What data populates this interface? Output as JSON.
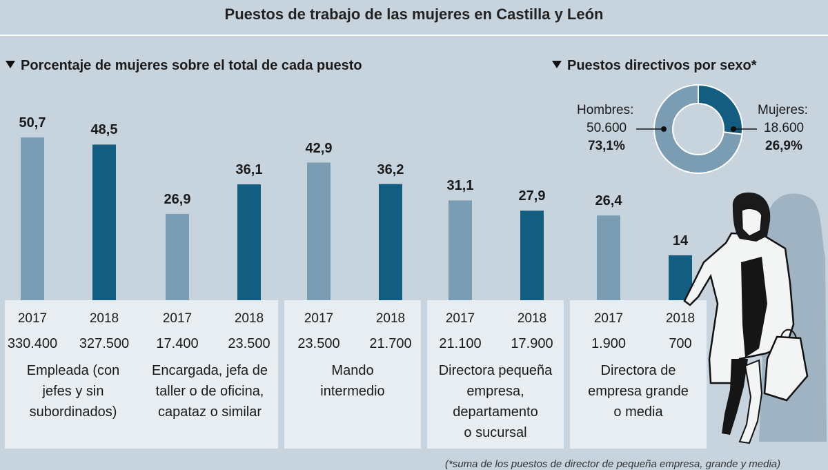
{
  "title": "Puestos de trabajo de las mujeres en Castilla y León",
  "footnote": "(*suma de los puestos de director de pequeña empresa, grande y media)",
  "colors": {
    "y2017": "#7b9db3",
    "y2018": "#135d80",
    "background": "#c7d4de",
    "panel": "#e8edf2"
  },
  "chart_data": [
    {
      "type": "bar",
      "title": "Porcentaje de mujeres sobre el total de cada puesto",
      "ylim": [
        0,
        60
      ],
      "years": [
        "2017",
        "2018"
      ],
      "value_labels": [
        [
          "50,7",
          "48,5"
        ],
        [
          "26,9",
          "36,1"
        ],
        [
          "42,9",
          "36,2"
        ],
        [
          "31,1",
          "27,9"
        ],
        [
          "26,4",
          "14"
        ]
      ],
      "counts": [
        [
          "330.400",
          "327.500"
        ],
        [
          "17.400",
          "23.500"
        ],
        [
          "23.500",
          "21.700"
        ],
        [
          "21.100",
          "17.900"
        ],
        [
          "1.900",
          "700"
        ]
      ],
      "categories": [
        [
          "Empleada (con",
          "jefes y sin",
          "subordinados)"
        ],
        [
          "Encargada, jefa de",
          "taller o de oficina,",
          "capataz o similar"
        ],
        [
          "Mando",
          "intermedio"
        ],
        [
          "Directora pequeña",
          "empresa,",
          "departamento",
          "o sucursal"
        ],
        [
          "Directora de",
          "empresa grande",
          "o media"
        ]
      ],
      "series": [
        {
          "name": "2017",
          "values": [
            50.7,
            26.9,
            42.9,
            31.1,
            26.4
          ]
        },
        {
          "name": "2018",
          "values": [
            48.5,
            36.1,
            36.2,
            27.9,
            14
          ]
        }
      ]
    },
    {
      "type": "pie",
      "title": "Puestos directivos por sexo*",
      "slices": [
        {
          "name": "Hombres:",
          "count": "50.600",
          "percent_label": "73,1%",
          "value": 73.1
        },
        {
          "name": "Mujeres:",
          "count": "18.600",
          "percent_label": "26,9%",
          "value": 26.9
        }
      ]
    }
  ]
}
